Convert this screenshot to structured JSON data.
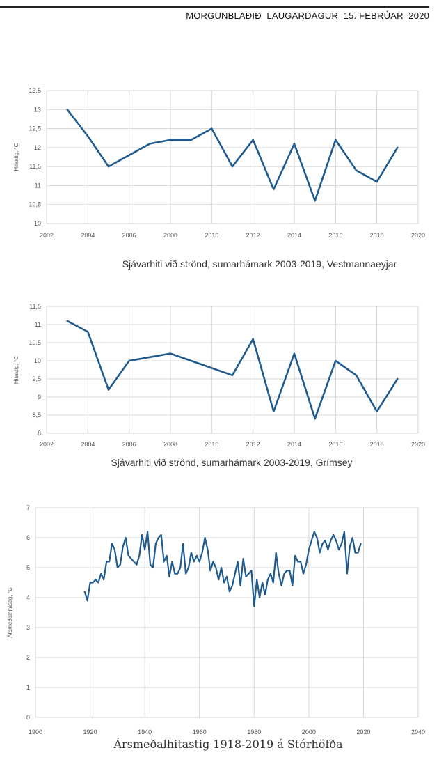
{
  "header": {
    "masthead": "MORGUNBLAÐIÐ  LAUGARDAGUR  15. FEBRÚAR  2020"
  },
  "series_color": "#1f5b8e",
  "chart_data": [
    {
      "type": "line",
      "title": "Sjávarhiti við strönd, sumarhámark 2003-2019, Vestmannaeyjar",
      "xlabel": "",
      "ylabel": "Hitastig, °C",
      "xlim": [
        2002,
        2020
      ],
      "ylim": [
        10,
        13.5
      ],
      "xticks": [
        2002,
        2004,
        2006,
        2008,
        2010,
        2012,
        2014,
        2016,
        2018,
        2020
      ],
      "xtick_labels": [
        "2002",
        "2004",
        "2006",
        "2008",
        "2010",
        "2012",
        "2014",
        "2016",
        "2018",
        "2020"
      ],
      "yticks": [
        10,
        10.5,
        11,
        11.5,
        12,
        12.5,
        13,
        13.5
      ],
      "ytick_labels": [
        "10",
        "10,5",
        "11",
        "11,5",
        "12",
        "12,5",
        "13",
        "13,5"
      ],
      "grid": true,
      "x": [
        2003,
        2004,
        2005,
        2006,
        2007,
        2008,
        2009,
        2010,
        2011,
        2012,
        2013,
        2014,
        2015,
        2016,
        2017,
        2018,
        2019
      ],
      "values": [
        13.0,
        12.3,
        11.5,
        11.8,
        12.1,
        12.2,
        12.2,
        12.5,
        11.5,
        12.2,
        10.9,
        12.1,
        10.6,
        12.2,
        11.4,
        11.1,
        12.0
      ]
    },
    {
      "type": "line",
      "title": "Sjávarhiti við strönd, sumarhámark 2003-2019, Grímsey",
      "xlabel": "",
      "ylabel": "Hitastig, °C",
      "xlim": [
        2002,
        2020
      ],
      "ylim": [
        8,
        11.5
      ],
      "xticks": [
        2002,
        2004,
        2006,
        2008,
        2010,
        2012,
        2014,
        2016,
        2018,
        2020
      ],
      "xtick_labels": [
        "2002",
        "2004",
        "2006",
        "2008",
        "2010",
        "2012",
        "2014",
        "2016",
        "2018",
        "2020"
      ],
      "yticks": [
        8,
        8.5,
        9,
        9.5,
        10,
        10.5,
        11,
        11.5
      ],
      "ytick_labels": [
        "8",
        "8,5",
        "9",
        "9,5",
        "10",
        "10,5",
        "11",
        "11,5"
      ],
      "grid": true,
      "x": [
        2003,
        2004,
        2005,
        2006,
        2007,
        2008,
        2009,
        2010,
        2011,
        2012,
        2013,
        2014,
        2015,
        2016,
        2017,
        2018,
        2019
      ],
      "values": [
        11.1,
        10.8,
        9.2,
        10.0,
        10.1,
        10.2,
        10.0,
        9.8,
        9.6,
        10.6,
        8.6,
        10.2,
        8.4,
        10.0,
        9.6,
        8.6,
        9.5
      ]
    },
    {
      "type": "line",
      "title": "Ársmeðalhitastig 1918-2019 á Stórhöfða",
      "xlabel": "",
      "ylabel": "Ársmeðalhitastig, °C",
      "xlim": [
        1900,
        2040
      ],
      "ylim": [
        0,
        7
      ],
      "xticks": [
        1900,
        1920,
        1940,
        1960,
        1980,
        2000,
        2020,
        2040
      ],
      "xtick_labels": [
        "1900",
        "1920",
        "1940",
        "1960",
        "1980",
        "2000",
        "2020",
        "2040"
      ],
      "yticks": [
        0,
        1,
        2,
        3,
        4,
        5,
        6,
        7
      ],
      "ytick_labels": [
        "0",
        "1",
        "2",
        "3",
        "4",
        "5",
        "6",
        "7"
      ],
      "grid": true,
      "x": [
        1918,
        1919,
        1920,
        1921,
        1922,
        1923,
        1924,
        1925,
        1926,
        1927,
        1928,
        1929,
        1930,
        1931,
        1932,
        1933,
        1934,
        1935,
        1936,
        1937,
        1938,
        1939,
        1940,
        1941,
        1942,
        1943,
        1944,
        1945,
        1946,
        1947,
        1948,
        1949,
        1950,
        1951,
        1952,
        1953,
        1954,
        1955,
        1956,
        1957,
        1958,
        1959,
        1960,
        1961,
        1962,
        1963,
        1964,
        1965,
        1966,
        1967,
        1968,
        1969,
        1970,
        1971,
        1972,
        1973,
        1974,
        1975,
        1976,
        1977,
        1978,
        1979,
        1980,
        1981,
        1982,
        1983,
        1984,
        1985,
        1986,
        1987,
        1988,
        1989,
        1990,
        1991,
        1992,
        1993,
        1994,
        1995,
        1996,
        1997,
        1998,
        1999,
        2000,
        2001,
        2002,
        2003,
        2004,
        2005,
        2006,
        2007,
        2008,
        2009,
        2010,
        2011,
        2012,
        2013,
        2014,
        2015,
        2016,
        2017,
        2018,
        2019
      ],
      "values": [
        4.2,
        3.9,
        4.5,
        4.5,
        4.6,
        4.5,
        4.8,
        4.6,
        5.2,
        5.2,
        5.8,
        5.6,
        5.0,
        5.1,
        5.7,
        6.0,
        5.4,
        5.3,
        5.2,
        5.1,
        5.4,
        6.1,
        5.6,
        6.2,
        5.1,
        5.0,
        5.8,
        6.0,
        6.1,
        5.2,
        5.4,
        4.7,
        5.2,
        4.8,
        4.8,
        5.0,
        5.8,
        4.8,
        5.0,
        5.5,
        5.2,
        5.4,
        5.2,
        5.5,
        6.0,
        5.6,
        4.9,
        5.2,
        5.0,
        4.6,
        5.0,
        4.5,
        4.7,
        4.2,
        4.4,
        4.8,
        5.2,
        4.4,
        5.3,
        4.7,
        4.8,
        4.9,
        3.7,
        4.6,
        4.0,
        4.5,
        4.1,
        4.6,
        4.8,
        4.5,
        5.5,
        4.8,
        4.4,
        4.8,
        4.9,
        4.9,
        4.4,
        5.4,
        5.2,
        5.2,
        4.8,
        5.1,
        5.6,
        5.9,
        6.2,
        6.0,
        5.5,
        5.8,
        5.9,
        5.6,
        5.9,
        6.1,
        5.9,
        5.6,
        5.8,
        6.2,
        4.8,
        5.7,
        6.0,
        5.5,
        5.5,
        5.8
      ]
    }
  ]
}
